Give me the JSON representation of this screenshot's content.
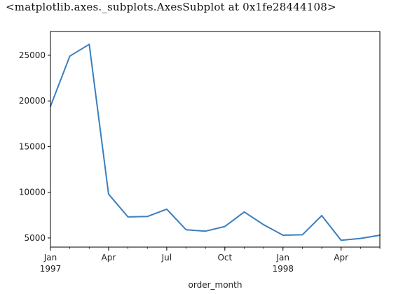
{
  "output_repr": "<matplotlib.axes._subplots.AxesSubplot at 0x1fe28444108>",
  "chart_data": {
    "type": "line",
    "title": "",
    "xlabel": "order_month",
    "ylabel": "",
    "x": [
      "1997-01",
      "1997-02",
      "1997-03",
      "1997-04",
      "1997-05",
      "1997-06",
      "1997-07",
      "1997-08",
      "1997-09",
      "1997-10",
      "1997-11",
      "1997-12",
      "1998-01",
      "1998-02",
      "1998-03",
      "1998-04",
      "1998-05",
      "1998-06"
    ],
    "series": [
      {
        "values": [
          19400,
          24900,
          26200,
          9800,
          7300,
          7350,
          8150,
          5900,
          5750,
          6250,
          7850,
          6450,
          5300,
          5350,
          7450,
          4750,
          4950,
          5300
        ],
        "color": "#3a7fc0"
      }
    ],
    "ylim": [
      4000,
      27600
    ],
    "yticks": [
      5000,
      10000,
      15000,
      20000,
      25000
    ],
    "ytick_labels": [
      "5000",
      "10000",
      "15000",
      "20000",
      "25000"
    ],
    "xtick_labels": [
      {
        "month": "1997-01",
        "label": "Jan",
        "sub": "1997"
      },
      {
        "month": "1997-04",
        "label": "Apr",
        "sub": ""
      },
      {
        "month": "1997-07",
        "label": "Jul",
        "sub": ""
      },
      {
        "month": "1997-10",
        "label": "Oct",
        "sub": ""
      },
      {
        "month": "1998-01",
        "label": "Jan",
        "sub": "1998"
      },
      {
        "month": "1998-04",
        "label": "Apr",
        "sub": ""
      }
    ],
    "grid": false,
    "legend": "none"
  }
}
